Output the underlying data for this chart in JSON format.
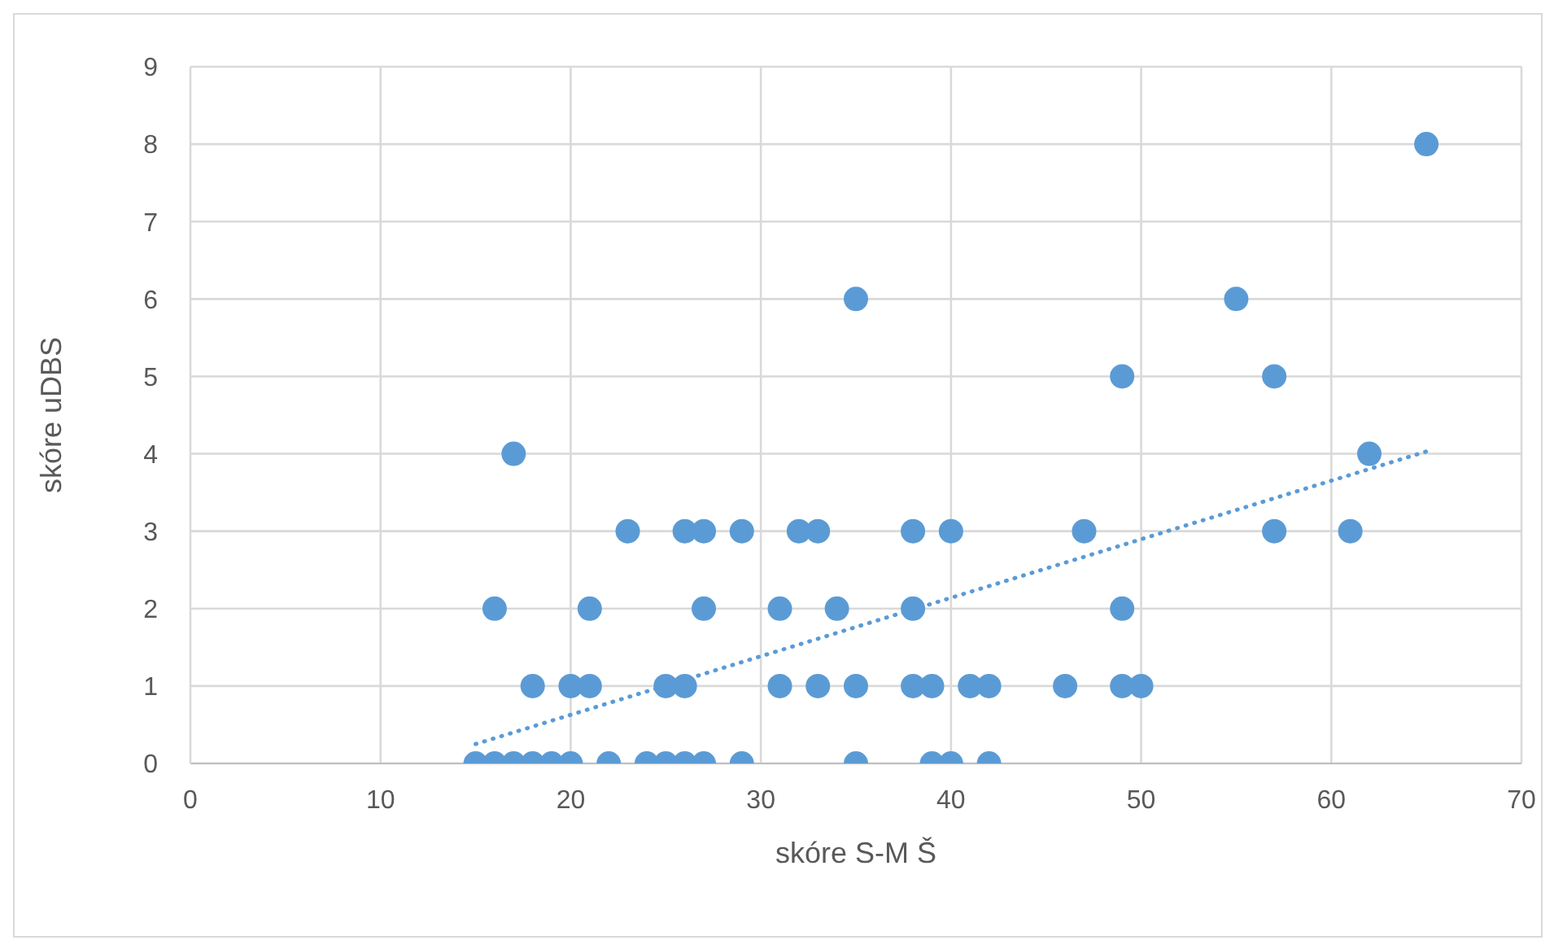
{
  "chart_data": {
    "type": "scatter",
    "xlabel": "skóre S-M Š",
    "ylabel": "skóre uDBS",
    "series": [
      {
        "color": "#5b9bd5",
        "x": [
          15,
          16,
          17,
          18,
          19,
          20,
          22,
          24,
          25,
          26,
          27,
          29,
          35,
          39,
          40,
          42,
          18,
          20,
          21,
          25,
          26,
          31,
          33,
          35,
          38,
          39,
          41,
          42,
          46,
          49,
          50,
          16,
          21,
          27,
          31,
          34,
          38,
          49,
          23,
          26,
          27,
          29,
          32,
          33,
          38,
          40,
          47,
          57,
          61,
          17,
          62,
          49,
          57,
          35,
          55,
          65
        ],
        "values": [
          0,
          0,
          0,
          0,
          0,
          0,
          0,
          0,
          0,
          0,
          0,
          0,
          0,
          0,
          0,
          0,
          1,
          1,
          1,
          1,
          1,
          1,
          1,
          1,
          1,
          1,
          1,
          1,
          1,
          1,
          1,
          2,
          2,
          2,
          2,
          2,
          2,
          2,
          3,
          3,
          3,
          3,
          3,
          3,
          3,
          3,
          3,
          3,
          3,
          4,
          4,
          5,
          5,
          6,
          6,
          8
        ]
      },
      {
        "type": "line",
        "color": "#5b9bd5",
        "line_style": "dotted",
        "marker": "none",
        "x": [
          15,
          65
        ],
        "values": [
          0.25,
          4.03
        ]
      }
    ],
    "xlim": [
      0,
      70
    ],
    "xticks": [
      0,
      10,
      20,
      30,
      40,
      50,
      60,
      70
    ],
    "ylim": [
      0,
      9
    ],
    "yticks": [
      0,
      1,
      2,
      3,
      4,
      5,
      6,
      7,
      8,
      9
    ],
    "grid": true
  }
}
